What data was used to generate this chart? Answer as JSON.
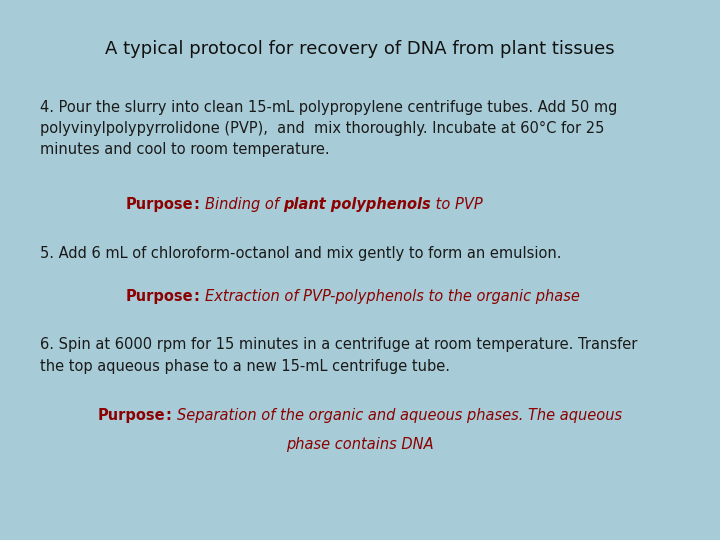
{
  "title": "A typical protocol for recovery of DNA from plant tissues",
  "bg_color": "#a8ccd7",
  "title_color": "#111111",
  "body_color": "#1a1a1a",
  "purpose_color": "#8B0000",
  "title_fontsize": 13,
  "body_fontsize": 10.5,
  "purpose_fontsize": 10.5,
  "step4_text": "4. Pour the slurry into clean 15-mL polypropylene centrifuge tubes. Add 50 mg\npolyvinylpolypyrrolidone (PVP),  and  mix thoroughly. Incubate at 60°C for 25\nminutes and cool to room temperature.",
  "purpose4_bold": "Purpose",
  "purpose4_colon": ": ",
  "purpose4_italic1": "Binding of ",
  "purpose4_bold_italic": "plant polyphenols",
  "purpose4_italic2": " to PVP",
  "step5_text": "5. Add 6 mL of chloroform-octanol and mix gently to form an emulsion.",
  "purpose5_bold": "Purpose",
  "purpose5_colon": ": ",
  "purpose5_italic": "Extraction of PVP-polyphenols to the organic phase",
  "step6_text": "6. Spin at 6000 rpm for 15 minutes in a centrifuge at room temperature. Transfer\nthe top aqueous phase to a new 15-mL centrifuge tube.",
  "purpose6_bold": "Purpose",
  "purpose6_colon": ": ",
  "purpose6_line1": "Separation of the organic and aqueous phases. The aqueous",
  "purpose6_line2": "phase contains DNA"
}
